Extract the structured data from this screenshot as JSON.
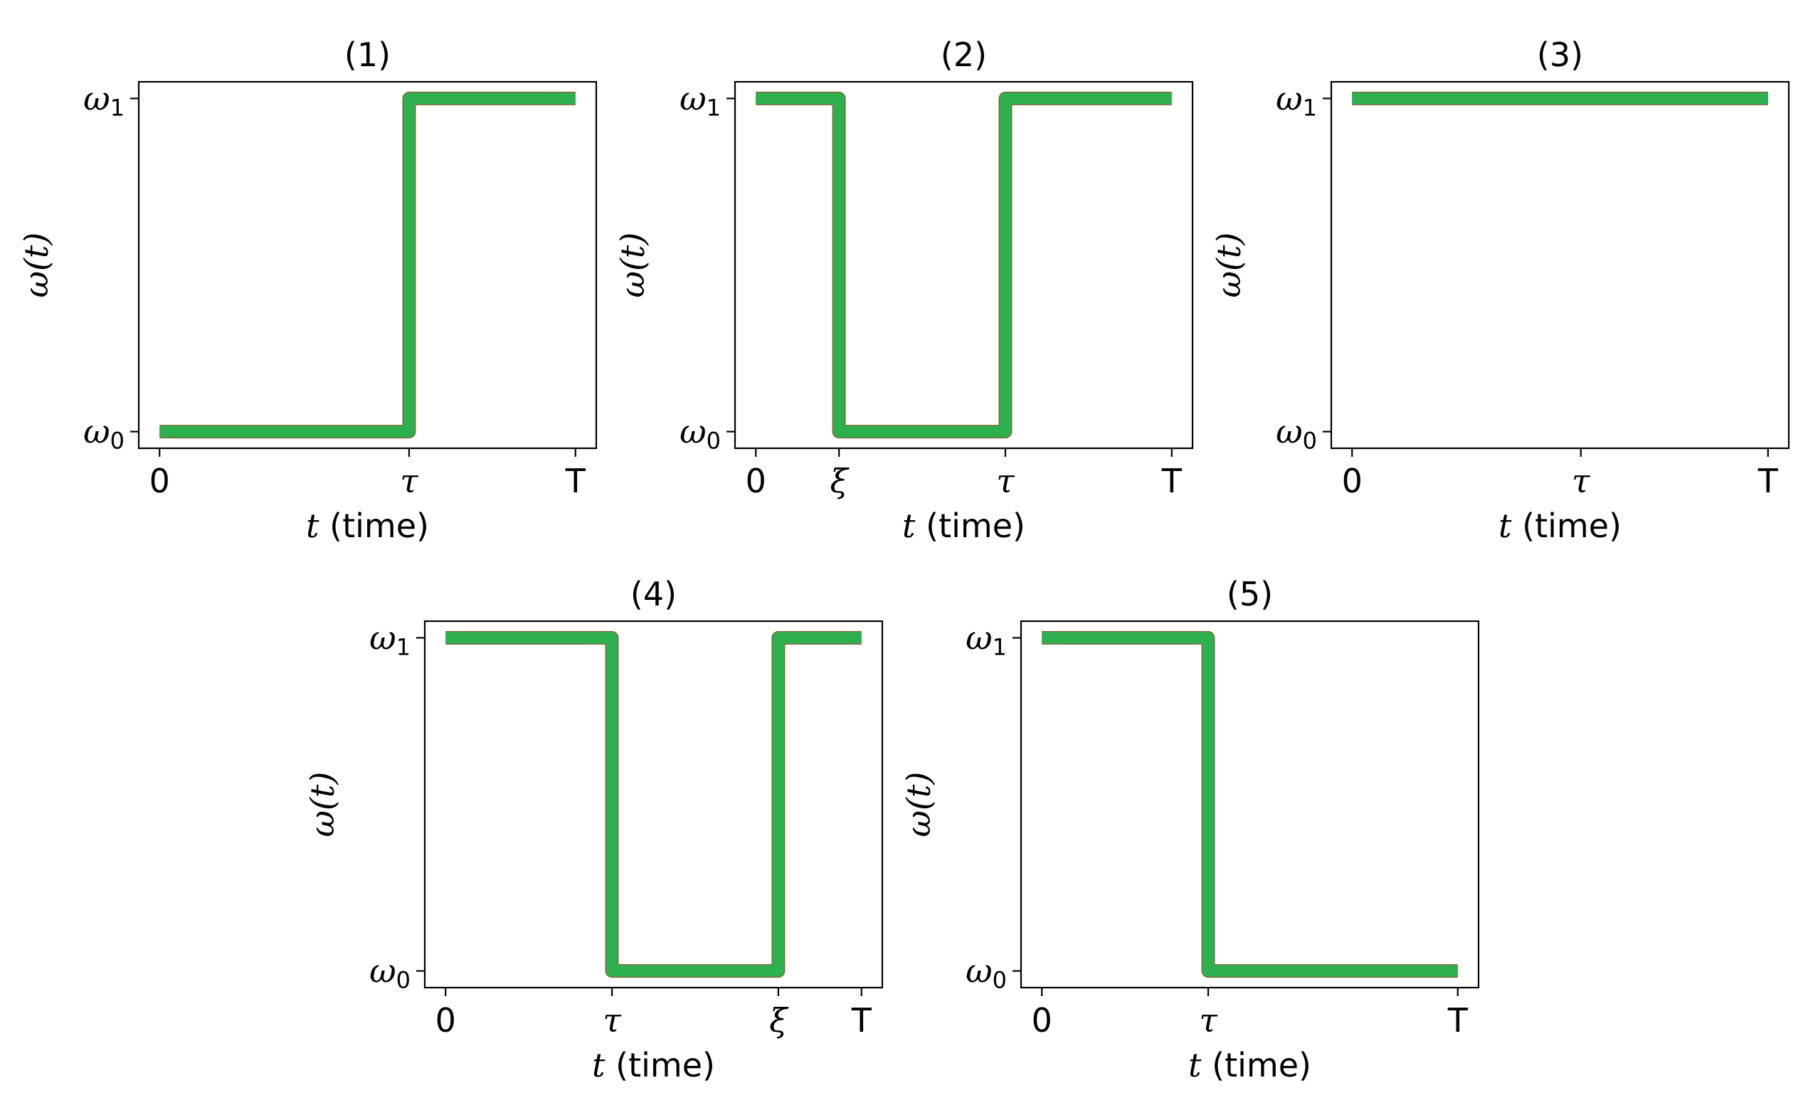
{
  "chart_data": [
    {
      "type": "line",
      "title": "(1)",
      "xlabel_var": "t",
      "xlabel_text": " (time)",
      "ylabel": "ω(t)",
      "x_ticks": [
        "0",
        "τ",
        "T"
      ],
      "y_ticks": [
        {
          "sym": "ω",
          "sub": "1"
        },
        {
          "sym": "ω",
          "sub": "0"
        }
      ],
      "xlim": [
        -0.05,
        1.05
      ],
      "ylim": [
        -0.05,
        1.05
      ],
      "tick_x_values": [
        0,
        0.6,
        1
      ],
      "series": [
        {
          "x": [
            0,
            0.6,
            0.6,
            1
          ],
          "y": [
            0,
            0,
            1,
            1
          ]
        }
      ],
      "line_color": "#2db14e"
    },
    {
      "type": "line",
      "title": "(2)",
      "xlabel_var": "t",
      "xlabel_text": " (time)",
      "ylabel": "ω(t)",
      "x_ticks": [
        "0",
        "ξ",
        "τ",
        "T"
      ],
      "y_ticks": [
        {
          "sym": "ω",
          "sub": "1"
        },
        {
          "sym": "ω",
          "sub": "0"
        }
      ],
      "xlim": [
        -0.05,
        1.05
      ],
      "ylim": [
        -0.05,
        1.05
      ],
      "tick_x_values": [
        0,
        0.2,
        0.6,
        1
      ],
      "series": [
        {
          "x": [
            0,
            0.2,
            0.2,
            0.6,
            0.6,
            1
          ],
          "y": [
            1,
            1,
            0,
            0,
            1,
            1
          ]
        }
      ],
      "line_color": "#2db14e"
    },
    {
      "type": "line",
      "title": "(3)",
      "xlabel_var": "t",
      "xlabel_text": " (time)",
      "ylabel": "ω(t)",
      "x_ticks": [
        "0",
        "τ",
        "T"
      ],
      "y_ticks": [
        {
          "sym": "ω",
          "sub": "1"
        },
        {
          "sym": "ω",
          "sub": "0"
        }
      ],
      "xlim": [
        -0.05,
        1.05
      ],
      "ylim": [
        -0.05,
        1.05
      ],
      "tick_x_values": [
        0,
        0.55,
        1
      ],
      "series": [
        {
          "x": [
            0,
            1
          ],
          "y": [
            1,
            1
          ]
        }
      ],
      "line_color": "#2db14e"
    },
    {
      "type": "line",
      "title": "(4)",
      "xlabel_var": "t",
      "xlabel_text": " (time)",
      "ylabel": "ω(t)",
      "x_ticks": [
        "0",
        "τ",
        "ξ",
        "T"
      ],
      "y_ticks": [
        {
          "sym": "ω",
          "sub": "1"
        },
        {
          "sym": "ω",
          "sub": "0"
        }
      ],
      "xlim": [
        -0.05,
        1.05
      ],
      "ylim": [
        -0.05,
        1.05
      ],
      "tick_x_values": [
        0,
        0.4,
        0.8,
        1
      ],
      "series": [
        {
          "x": [
            0,
            0.4,
            0.4,
            0.8,
            0.8,
            1
          ],
          "y": [
            1,
            1,
            0,
            0,
            1,
            1
          ]
        }
      ],
      "line_color": "#2db14e"
    },
    {
      "type": "line",
      "title": "(5)",
      "xlabel_var": "t",
      "xlabel_text": " (time)",
      "ylabel": "ω(t)",
      "x_ticks": [
        "0",
        "τ",
        "T"
      ],
      "y_ticks": [
        {
          "sym": "ω",
          "sub": "1"
        },
        {
          "sym": "ω",
          "sub": "0"
        }
      ],
      "xlim": [
        -0.05,
        1.05
      ],
      "ylim": [
        -0.05,
        1.05
      ],
      "tick_x_values": [
        0,
        0.4,
        1
      ],
      "series": [
        {
          "x": [
            0,
            0.4,
            0.4,
            1
          ],
          "y": [
            1,
            1,
            0,
            0
          ]
        }
      ],
      "line_color": "#2db14e"
    }
  ]
}
